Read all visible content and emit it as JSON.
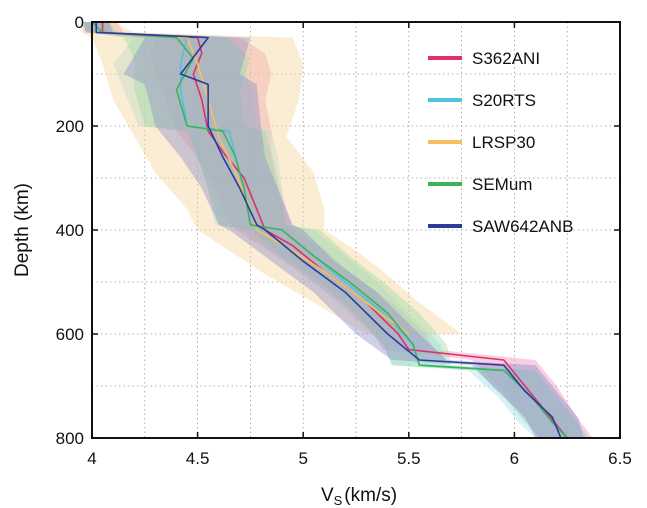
{
  "chart_data": {
    "type": "line",
    "title": "",
    "xlabel": "Vs (km/s)",
    "xlabel_main": "V",
    "xlabel_sub": "S",
    "xlabel_unit": "(km/s)",
    "ylabel": "Depth (km)",
    "xlim": [
      4,
      6.5
    ],
    "ylim": [
      800,
      0
    ],
    "x_ticks": [
      "4",
      "4.5",
      "5",
      "5.5",
      "6",
      "6.5"
    ],
    "x_tick_values": [
      4,
      4.5,
      5,
      5.5,
      6,
      6.5
    ],
    "y_ticks": [
      "0",
      "200",
      "400",
      "600",
      "800"
    ],
    "y_tick_values": [
      0,
      200,
      400,
      600,
      800
    ],
    "grid": true,
    "legend_position": "top-right",
    "series": [
      {
        "name": "S362ANI",
        "color": "#e0306a",
        "band_color": "#f08cb8",
        "points": [
          [
            4.05,
            0
          ],
          [
            4.05,
            20
          ],
          [
            4.5,
            30
          ],
          [
            4.52,
            60
          ],
          [
            4.48,
            100
          ],
          [
            4.52,
            150
          ],
          [
            4.55,
            210
          ],
          [
            4.62,
            250
          ],
          [
            4.72,
            300
          ],
          [
            4.78,
            360
          ],
          [
            4.82,
            400
          ],
          [
            4.95,
            430
          ],
          [
            5.1,
            480
          ],
          [
            5.3,
            540
          ],
          [
            5.45,
            600
          ],
          [
            5.5,
            630
          ],
          [
            5.95,
            650
          ],
          [
            6.05,
            700
          ],
          [
            6.15,
            750
          ],
          [
            6.25,
            800
          ]
        ],
        "lower": [
          [
            3.95,
            0
          ],
          [
            3.97,
            20
          ],
          [
            4.3,
            30
          ],
          [
            4.28,
            60
          ],
          [
            4.3,
            100
          ],
          [
            4.35,
            150
          ],
          [
            4.4,
            210
          ],
          [
            4.48,
            250
          ],
          [
            4.56,
            300
          ],
          [
            4.62,
            360
          ],
          [
            4.68,
            400
          ],
          [
            4.8,
            430
          ],
          [
            4.98,
            480
          ],
          [
            5.18,
            540
          ],
          [
            5.33,
            600
          ],
          [
            5.38,
            630
          ],
          [
            5.8,
            650
          ],
          [
            5.92,
            700
          ],
          [
            6.02,
            750
          ],
          [
            6.12,
            800
          ]
        ],
        "upper": [
          [
            4.12,
            0
          ],
          [
            4.15,
            20
          ],
          [
            4.7,
            30
          ],
          [
            4.82,
            60
          ],
          [
            4.85,
            100
          ],
          [
            4.82,
            150
          ],
          [
            4.85,
            210
          ],
          [
            4.85,
            250
          ],
          [
            4.88,
            300
          ],
          [
            4.92,
            360
          ],
          [
            4.95,
            400
          ],
          [
            5.08,
            430
          ],
          [
            5.22,
            480
          ],
          [
            5.42,
            540
          ],
          [
            5.58,
            600
          ],
          [
            5.62,
            630
          ],
          [
            6.1,
            650
          ],
          [
            6.2,
            700
          ],
          [
            6.28,
            750
          ],
          [
            6.37,
            800
          ]
        ]
      },
      {
        "name": "S20RTS",
        "color": "#4cc4dc",
        "band_color": "#9be0ec",
        "points": [
          [
            4.0,
            0
          ],
          [
            4.0,
            20
          ],
          [
            4.45,
            30
          ],
          [
            4.42,
            80
          ],
          [
            4.42,
            130
          ],
          [
            4.45,
            200
          ],
          [
            4.65,
            210
          ],
          [
            4.68,
            260
          ],
          [
            4.72,
            320
          ],
          [
            4.75,
            390
          ],
          [
            4.9,
            400
          ],
          [
            5.05,
            450
          ],
          [
            5.2,
            500
          ],
          [
            5.38,
            560
          ],
          [
            5.52,
            620
          ],
          [
            5.55,
            660
          ],
          [
            5.95,
            670
          ],
          [
            6.08,
            720
          ],
          [
            6.18,
            770
          ],
          [
            6.25,
            800
          ]
        ],
        "lower": [
          [
            3.95,
            0
          ],
          [
            3.96,
            20
          ],
          [
            4.2,
            30
          ],
          [
            4.1,
            80
          ],
          [
            4.15,
            130
          ],
          [
            4.22,
            200
          ],
          [
            4.45,
            210
          ],
          [
            4.5,
            260
          ],
          [
            4.55,
            320
          ],
          [
            4.58,
            390
          ],
          [
            4.72,
            400
          ],
          [
            4.88,
            450
          ],
          [
            5.05,
            500
          ],
          [
            5.22,
            560
          ],
          [
            5.38,
            620
          ],
          [
            5.42,
            660
          ],
          [
            5.78,
            670
          ],
          [
            5.92,
            720
          ],
          [
            6.02,
            770
          ],
          [
            6.1,
            800
          ]
        ],
        "upper": [
          [
            4.08,
            0
          ],
          [
            4.1,
            20
          ],
          [
            4.65,
            30
          ],
          [
            4.72,
            80
          ],
          [
            4.75,
            130
          ],
          [
            4.78,
            200
          ],
          [
            4.85,
            210
          ],
          [
            4.88,
            260
          ],
          [
            4.9,
            320
          ],
          [
            4.92,
            390
          ],
          [
            5.05,
            400
          ],
          [
            5.2,
            450
          ],
          [
            5.35,
            500
          ],
          [
            5.5,
            560
          ],
          [
            5.65,
            620
          ],
          [
            5.68,
            660
          ],
          [
            6.1,
            670
          ],
          [
            6.2,
            720
          ],
          [
            6.3,
            770
          ],
          [
            6.35,
            800
          ]
        ]
      },
      {
        "name": "LRSP30",
        "color": "#f4c060",
        "band_color": "#f2d396",
        "points": [
          [
            4.0,
            0
          ],
          [
            4.0,
            20
          ],
          [
            4.45,
            30
          ],
          [
            4.5,
            80
          ],
          [
            4.55,
            150
          ],
          [
            4.6,
            220
          ],
          [
            4.68,
            290
          ],
          [
            4.75,
            360
          ],
          [
            4.78,
            400
          ],
          [
            4.95,
            440
          ],
          [
            5.1,
            480
          ],
          [
            5.3,
            540
          ],
          [
            5.5,
            600
          ]
        ],
        "lower": [
          [
            3.95,
            0
          ],
          [
            3.95,
            20
          ],
          [
            4.0,
            30
          ],
          [
            4.05,
            80
          ],
          [
            4.1,
            150
          ],
          [
            4.2,
            220
          ],
          [
            4.3,
            290
          ],
          [
            4.45,
            360
          ],
          [
            4.5,
            400
          ],
          [
            4.65,
            440
          ],
          [
            4.8,
            480
          ],
          [
            5.05,
            540
          ],
          [
            5.3,
            600
          ]
        ],
        "upper": [
          [
            4.1,
            0
          ],
          [
            4.2,
            20
          ],
          [
            4.95,
            30
          ],
          [
            5.0,
            80
          ],
          [
            4.98,
            150
          ],
          [
            4.92,
            220
          ],
          [
            5.05,
            290
          ],
          [
            5.1,
            360
          ],
          [
            5.1,
            400
          ],
          [
            5.25,
            440
          ],
          [
            5.38,
            480
          ],
          [
            5.55,
            540
          ],
          [
            5.75,
            600
          ]
        ]
      },
      {
        "name": "SEMum",
        "color": "#3cb45a",
        "band_color": "#9fd8a8",
        "points": [
          [
            4.0,
            0
          ],
          [
            4.05,
            20
          ],
          [
            4.4,
            30
          ],
          [
            4.48,
            70
          ],
          [
            4.4,
            130
          ],
          [
            4.45,
            200
          ],
          [
            4.62,
            210
          ],
          [
            4.68,
            260
          ],
          [
            4.72,
            320
          ],
          [
            4.75,
            390
          ],
          [
            4.9,
            400
          ],
          [
            5.05,
            450
          ],
          [
            5.22,
            500
          ],
          [
            5.4,
            560
          ],
          [
            5.52,
            620
          ],
          [
            5.55,
            660
          ],
          [
            5.95,
            670
          ],
          [
            6.08,
            720
          ],
          [
            6.18,
            770
          ],
          [
            6.25,
            800
          ]
        ],
        "lower": [
          [
            3.95,
            0
          ],
          [
            3.98,
            20
          ],
          [
            4.15,
            30
          ],
          [
            4.2,
            70
          ],
          [
            4.2,
            130
          ],
          [
            4.25,
            200
          ],
          [
            4.45,
            210
          ],
          [
            4.5,
            260
          ],
          [
            4.55,
            320
          ],
          [
            4.6,
            390
          ],
          [
            4.75,
            400
          ],
          [
            4.9,
            450
          ],
          [
            5.08,
            500
          ],
          [
            5.25,
            560
          ],
          [
            5.38,
            620
          ],
          [
            5.42,
            660
          ],
          [
            5.82,
            670
          ],
          [
            5.95,
            720
          ],
          [
            6.05,
            770
          ],
          [
            6.12,
            800
          ]
        ],
        "upper": [
          [
            4.08,
            0
          ],
          [
            4.12,
            20
          ],
          [
            4.65,
            30
          ],
          [
            4.75,
            70
          ],
          [
            4.7,
            130
          ],
          [
            4.72,
            200
          ],
          [
            4.82,
            210
          ],
          [
            4.85,
            260
          ],
          [
            4.88,
            320
          ],
          [
            4.92,
            390
          ],
          [
            5.08,
            400
          ],
          [
            5.22,
            450
          ],
          [
            5.38,
            500
          ],
          [
            5.55,
            560
          ],
          [
            5.68,
            620
          ],
          [
            5.7,
            660
          ],
          [
            6.1,
            670
          ],
          [
            6.2,
            720
          ],
          [
            6.3,
            770
          ],
          [
            6.35,
            800
          ]
        ]
      },
      {
        "name": "SAW642ANB",
        "color": "#2c3c9c",
        "band_color": "#8c8cc8",
        "points": [
          [
            4.02,
            0
          ],
          [
            4.02,
            20
          ],
          [
            4.55,
            30
          ],
          [
            4.42,
            100
          ],
          [
            4.55,
            120
          ],
          [
            4.55,
            200
          ],
          [
            4.62,
            260
          ],
          [
            4.7,
            320
          ],
          [
            4.78,
            390
          ],
          [
            4.82,
            400
          ],
          [
            5.0,
            460
          ],
          [
            5.2,
            520
          ],
          [
            5.4,
            600
          ],
          [
            5.55,
            650
          ],
          [
            5.95,
            660
          ],
          [
            6.05,
            710
          ],
          [
            6.18,
            760
          ],
          [
            6.22,
            800
          ]
        ],
        "lower": [
          [
            3.96,
            0
          ],
          [
            3.97,
            20
          ],
          [
            4.25,
            30
          ],
          [
            4.15,
            100
          ],
          [
            4.25,
            120
          ],
          [
            4.3,
            200
          ],
          [
            4.42,
            260
          ],
          [
            4.52,
            320
          ],
          [
            4.6,
            390
          ],
          [
            4.65,
            400
          ],
          [
            4.85,
            460
          ],
          [
            5.05,
            520
          ],
          [
            5.25,
            600
          ],
          [
            5.42,
            650
          ],
          [
            5.8,
            660
          ],
          [
            5.92,
            710
          ],
          [
            6.05,
            760
          ],
          [
            6.1,
            800
          ]
        ],
        "upper": [
          [
            4.08,
            0
          ],
          [
            4.1,
            20
          ],
          [
            4.75,
            30
          ],
          [
            4.7,
            100
          ],
          [
            4.78,
            120
          ],
          [
            4.8,
            200
          ],
          [
            4.82,
            260
          ],
          [
            4.88,
            320
          ],
          [
            4.95,
            390
          ],
          [
            5.0,
            400
          ],
          [
            5.15,
            460
          ],
          [
            5.35,
            520
          ],
          [
            5.55,
            600
          ],
          [
            5.68,
            650
          ],
          [
            6.1,
            660
          ],
          [
            6.2,
            710
          ],
          [
            6.3,
            760
          ],
          [
            6.33,
            800
          ]
        ]
      }
    ]
  }
}
